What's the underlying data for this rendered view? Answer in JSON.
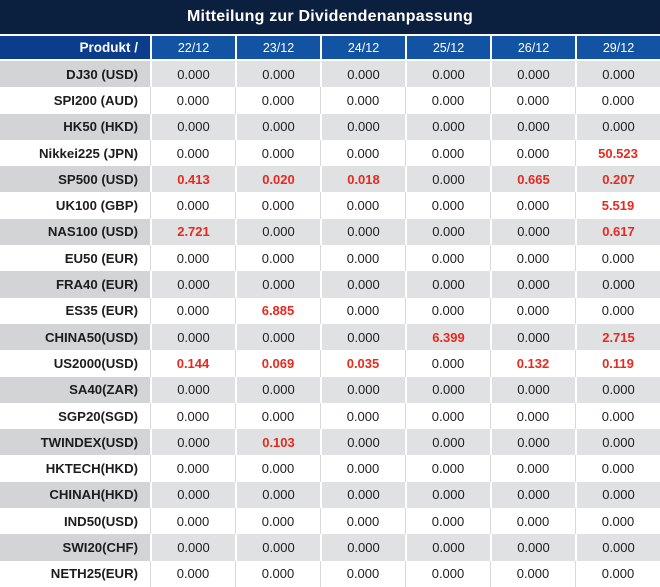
{
  "title": "Mitteilung zur Dividendenanpassung",
  "colors": {
    "title_bar_bg": "#0B1F3E",
    "header_product_bg": "#0C3C8C",
    "header_date_bg": "#1353A4",
    "row_alt_product_bg": "#D3D4D6",
    "row_alt_value_bg": "#E0E1E3",
    "row_white_bg": "#FFFFFF",
    "separator_white": "#FFFFFF",
    "separator_gray": "#D9D9D9",
    "text_dark": "#1D1D1F",
    "value_red": "#E8291F"
  },
  "table": {
    "product_header": "Produkt /",
    "date_headers": [
      "22/12",
      "23/12",
      "24/12",
      "25/12",
      "26/12",
      "29/12"
    ],
    "rows": [
      {
        "product": "DJ30 (USD)",
        "values": [
          "0.000",
          "0.000",
          "0.000",
          "0.000",
          "0.000",
          "0.000"
        ],
        "red": [
          0,
          0,
          0,
          0,
          0,
          0
        ]
      },
      {
        "product": "SPI200 (AUD)",
        "values": [
          "0.000",
          "0.000",
          "0.000",
          "0.000",
          "0.000",
          "0.000"
        ],
        "red": [
          0,
          0,
          0,
          0,
          0,
          0
        ]
      },
      {
        "product": "HK50 (HKD)",
        "values": [
          "0.000",
          "0.000",
          "0.000",
          "0.000",
          "0.000",
          "0.000"
        ],
        "red": [
          0,
          0,
          0,
          0,
          0,
          0
        ]
      },
      {
        "product": "Nikkei225 (JPN)",
        "values": [
          "0.000",
          "0.000",
          "0.000",
          "0.000",
          "0.000",
          "50.523"
        ],
        "red": [
          0,
          0,
          0,
          0,
          0,
          1
        ]
      },
      {
        "product": "SP500 (USD)",
        "values": [
          "0.413",
          "0.020",
          "0.018",
          "0.000",
          "0.665",
          "0.207"
        ],
        "red": [
          1,
          1,
          1,
          0,
          1,
          1
        ]
      },
      {
        "product": "UK100 (GBP)",
        "values": [
          "0.000",
          "0.000",
          "0.000",
          "0.000",
          "0.000",
          "5.519"
        ],
        "red": [
          0,
          0,
          0,
          0,
          0,
          1
        ]
      },
      {
        "product": "NAS100 (USD)",
        "values": [
          "2.721",
          "0.000",
          "0.000",
          "0.000",
          "0.000",
          "0.617"
        ],
        "red": [
          1,
          0,
          0,
          0,
          0,
          1
        ]
      },
      {
        "product": "EU50 (EUR)",
        "values": [
          "0.000",
          "0.000",
          "0.000",
          "0.000",
          "0.000",
          "0.000"
        ],
        "red": [
          0,
          0,
          0,
          0,
          0,
          0
        ]
      },
      {
        "product": "FRA40 (EUR)",
        "values": [
          "0.000",
          "0.000",
          "0.000",
          "0.000",
          "0.000",
          "0.000"
        ],
        "red": [
          0,
          0,
          0,
          0,
          0,
          0
        ]
      },
      {
        "product": "ES35 (EUR)",
        "values": [
          "0.000",
          "6.885",
          "0.000",
          "0.000",
          "0.000",
          "0.000"
        ],
        "red": [
          0,
          1,
          0,
          0,
          0,
          0
        ]
      },
      {
        "product": "CHINA50(USD)",
        "values": [
          "0.000",
          "0.000",
          "0.000",
          "6.399",
          "0.000",
          "2.715"
        ],
        "red": [
          0,
          0,
          0,
          1,
          0,
          1
        ]
      },
      {
        "product": "US2000(USD)",
        "values": [
          "0.144",
          "0.069",
          "0.035",
          "0.000",
          "0.132",
          "0.119"
        ],
        "red": [
          1,
          1,
          1,
          0,
          1,
          1
        ]
      },
      {
        "product": "SA40(ZAR)",
        "values": [
          "0.000",
          "0.000",
          "0.000",
          "0.000",
          "0.000",
          "0.000"
        ],
        "red": [
          0,
          0,
          0,
          0,
          0,
          0
        ]
      },
      {
        "product": "SGP20(SGD)",
        "values": [
          "0.000",
          "0.000",
          "0.000",
          "0.000",
          "0.000",
          "0.000"
        ],
        "red": [
          0,
          0,
          0,
          0,
          0,
          0
        ]
      },
      {
        "product": "TWINDEX(USD)",
        "values": [
          "0.000",
          "0.103",
          "0.000",
          "0.000",
          "0.000",
          "0.000"
        ],
        "red": [
          0,
          1,
          0,
          0,
          0,
          0
        ]
      },
      {
        "product": "HKTECH(HKD)",
        "values": [
          "0.000",
          "0.000",
          "0.000",
          "0.000",
          "0.000",
          "0.000"
        ],
        "red": [
          0,
          0,
          0,
          0,
          0,
          0
        ]
      },
      {
        "product": "CHINAH(HKD)",
        "values": [
          "0.000",
          "0.000",
          "0.000",
          "0.000",
          "0.000",
          "0.000"
        ],
        "red": [
          0,
          0,
          0,
          0,
          0,
          0
        ]
      },
      {
        "product": "IND50(USD)",
        "values": [
          "0.000",
          "0.000",
          "0.000",
          "0.000",
          "0.000",
          "0.000"
        ],
        "red": [
          0,
          0,
          0,
          0,
          0,
          0
        ]
      },
      {
        "product": "SWI20(CHF)",
        "values": [
          "0.000",
          "0.000",
          "0.000",
          "0.000",
          "0.000",
          "0.000"
        ],
        "red": [
          0,
          0,
          0,
          0,
          0,
          0
        ]
      },
      {
        "product": "NETH25(EUR)",
        "values": [
          "0.000",
          "0.000",
          "0.000",
          "0.000",
          "0.000",
          "0.000"
        ],
        "red": [
          0,
          0,
          0,
          0,
          0,
          0
        ]
      }
    ]
  }
}
